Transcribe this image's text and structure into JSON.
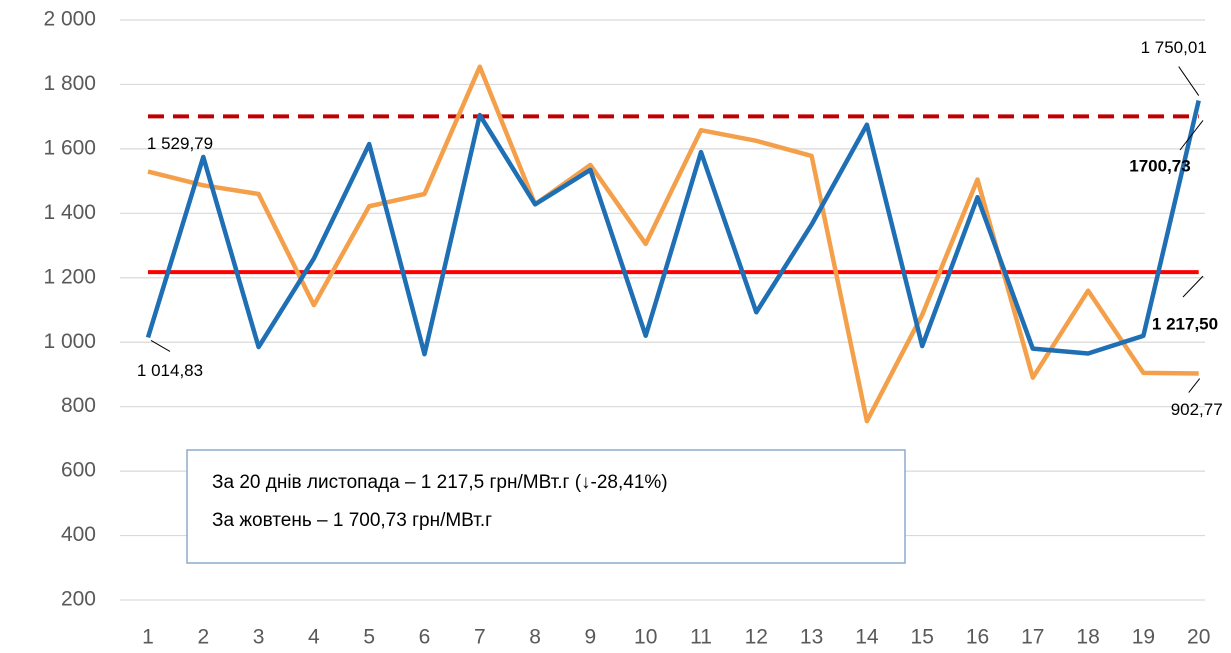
{
  "chart_data": {
    "type": "line",
    "categories": [
      "1",
      "2",
      "3",
      "4",
      "5",
      "6",
      "7",
      "8",
      "9",
      "10",
      "11",
      "12",
      "13",
      "14",
      "15",
      "16",
      "17",
      "18",
      "19",
      "20"
    ],
    "series": [
      {
        "color": "#f4a04a",
        "values": [
          1529.79,
          1487,
          1460,
          1115,
          1422,
          1460,
          1855,
          1428,
          1550,
          1305,
          1658,
          1625,
          1578,
          755,
          1085,
          1505,
          890,
          1160,
          905,
          902.77
        ],
        "value_labels": [
          "1 529,79",
          null,
          null,
          null,
          null,
          null,
          null,
          null,
          null,
          null,
          null,
          null,
          null,
          null,
          null,
          null,
          null,
          null,
          null,
          "902,77"
        ]
      },
      {
        "color": "#1f6fb5",
        "values": [
          1014.83,
          1575,
          985,
          1260,
          1615,
          963,
          1705,
          1428,
          1535,
          1020,
          1590,
          1093,
          1365,
          1675,
          988,
          1450,
          980,
          965,
          1020,
          1750.01
        ],
        "value_labels": [
          "1 014,83",
          null,
          null,
          null,
          null,
          null,
          null,
          null,
          null,
          null,
          null,
          null,
          null,
          null,
          null,
          null,
          null,
          null,
          null,
          "1 750,01"
        ]
      }
    ],
    "reference_lines": [
      {
        "value": 1700.73,
        "label": "1700,73",
        "color": "#c00000",
        "style": "dashed"
      },
      {
        "value": 1217.5,
        "label": "1 217,50",
        "color": "#ff0000",
        "style": "solid"
      }
    ],
    "annotations": [
      "За 20 днів листопада – 1 217,5 грн/МВт.г (↓-28,41%)",
      "За жовтень – 1 700,73 грн/МВт.г"
    ],
    "ylim": [
      200,
      2000
    ],
    "yticks": [
      200,
      400,
      600,
      800,
      {
        "value": 1000,
        "label": "1 000"
      },
      {
        "value": 1200,
        "label": "1 200"
      },
      {
        "value": 1400,
        "label": "1 400"
      },
      {
        "value": 1600,
        "label": "1 600"
      },
      {
        "value": 1800,
        "label": "1 800"
      },
      {
        "value": 2000,
        "label": "2 000"
      }
    ],
    "grid": true
  }
}
